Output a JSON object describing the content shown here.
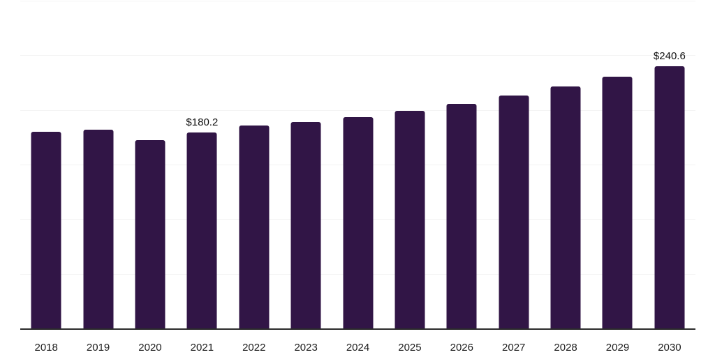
{
  "chart_data": {
    "type": "bar",
    "title": "",
    "xlabel": "",
    "ylabel": "",
    "categories": [
      "2018",
      "2019",
      "2020",
      "2021",
      "2022",
      "2023",
      "2024",
      "2025",
      "2026",
      "2027",
      "2028",
      "2029",
      "2030"
    ],
    "values": [
      180.9,
      182.4,
      173.2,
      180.2,
      186.1,
      189.8,
      193.9,
      199.9,
      206.3,
      213.8,
      222.2,
      231.1,
      240.6
    ],
    "point_labels": [
      "",
      "",
      "",
      "$180.2",
      "",
      "",
      "",
      "",
      "",
      "",
      "",
      "",
      "$240.6"
    ],
    "ylim": [
      0,
      300
    ],
    "grid": true,
    "grid_interval": 50,
    "legend": false,
    "bar_color": "#311546",
    "axis_line_color": "#2b2b2b",
    "gridline_color": "#f4f4f4",
    "value_label_color": "#111111",
    "tick_label_color": "#1c1c1c"
  }
}
